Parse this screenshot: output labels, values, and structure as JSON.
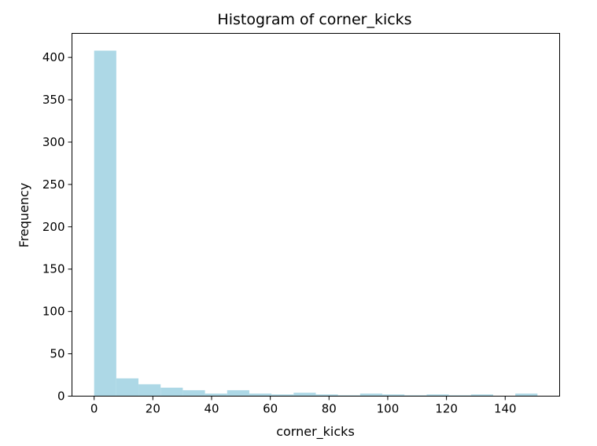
{
  "chart_data": {
    "type": "bar",
    "title": "Histogram of corner_kicks",
    "xlabel": "corner_kicks",
    "ylabel": "Frequency",
    "bin_edges": [
      0,
      7.55,
      15.1,
      22.65,
      30.2,
      37.75,
      45.3,
      52.85,
      60.4,
      67.95,
      75.5,
      83.05,
      90.6,
      98.15,
      105.7,
      113.25,
      120.8,
      128.35,
      135.9,
      143.45,
      151
    ],
    "values": [
      408,
      21,
      14,
      10,
      7,
      3,
      7,
      3,
      2,
      4,
      2,
      1,
      3,
      2,
      1,
      2,
      1,
      2,
      0,
      3
    ],
    "bar_color": "#add8e6",
    "xlim": [
      -7.55,
      158.55
    ],
    "ylim": [
      0,
      428.4
    ],
    "xticks": [
      0,
      20,
      40,
      60,
      80,
      100,
      120,
      140
    ],
    "yticks": [
      0,
      50,
      100,
      150,
      200,
      250,
      300,
      350,
      400
    ],
    "grid": false
  }
}
